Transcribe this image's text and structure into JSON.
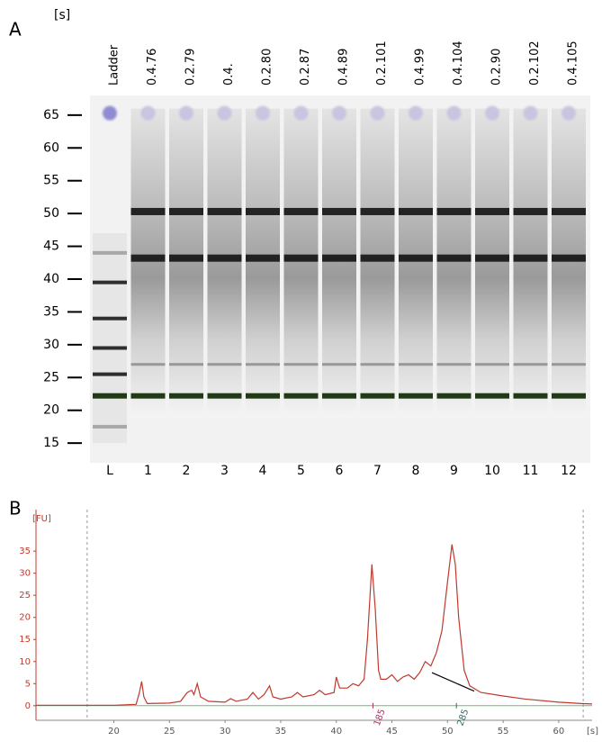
{
  "chart_data": [
    {
      "type": "gel",
      "panel": "A",
      "y_label": "[s]",
      "ylim": [
        12,
        68
      ],
      "yticks": [
        15,
        20,
        25,
        30,
        35,
        40,
        45,
        50,
        55,
        60,
        65
      ],
      "marker": 22.2,
      "marker_color": "#1f3a14",
      "band_color": "#1a1a1a",
      "lanes": [
        {
          "name": "Ladder",
          "label": "L",
          "bands": [
            44,
            39.5,
            34,
            29.5,
            25.5,
            17.5
          ]
        },
        {
          "name": "0.4.76",
          "label": "1",
          "bands": [
            50.3,
            43.2,
            27
          ]
        },
        {
          "name": "0.2.79",
          "label": "2",
          "bands": [
            50.3,
            43.2,
            27
          ]
        },
        {
          "name": "0.4.",
          "label": "3",
          "bands": [
            50.3,
            43.2,
            27
          ]
        },
        {
          "name": "0.2.80",
          "label": "4",
          "bands": [
            50.3,
            43.2,
            27
          ]
        },
        {
          "name": "0.2.87",
          "label": "5",
          "bands": [
            50.3,
            43.2,
            27
          ]
        },
        {
          "name": "0.4.89",
          "label": "6",
          "bands": [
            50.3,
            43.2,
            27
          ]
        },
        {
          "name": "0.2.101",
          "label": "7",
          "bands": [
            50.3,
            43.2,
            27
          ]
        },
        {
          "name": "0.4.99",
          "label": "8",
          "bands": [
            50.3,
            43.2,
            27
          ]
        },
        {
          "name": "0.4.104",
          "label": "9",
          "bands": [
            50.3,
            43.2,
            27
          ]
        },
        {
          "name": "0.2.90",
          "label": "10",
          "bands": [
            50.3,
            43.2,
            27
          ]
        },
        {
          "name": "0.2.102",
          "label": "11",
          "bands": [
            50.3,
            43.2,
            27
          ]
        },
        {
          "name": "0.4.105",
          "label": "12",
          "bands": [
            50.3,
            43.2,
            27
          ]
        }
      ]
    },
    {
      "type": "line",
      "panel": "B",
      "y_label": "[FU]",
      "x_label": "[s]",
      "xlim": [
        13,
        63
      ],
      "ylim": [
        -3.3,
        44.4
      ],
      "xticks": [
        20,
        25,
        30,
        35,
        40,
        45,
        50,
        55,
        60
      ],
      "yticks": [
        0,
        5,
        10,
        15,
        20,
        25,
        30,
        35
      ],
      "color": "#c0392b",
      "baseline_color": "#6abf69",
      "dashed_x": [
        17.6,
        62.2
      ],
      "annotations": [
        {
          "text": "185",
          "x": 43.3,
          "color": "#b0306a"
        },
        {
          "text": "285",
          "x": 50.8,
          "color": "#2f6b6b"
        }
      ],
      "region_line": {
        "x": [
          48.6,
          52.4
        ],
        "y": [
          7.5,
          3.3
        ]
      },
      "x": [
        13,
        17,
        20,
        22,
        22.3,
        22.5,
        22.7,
        23,
        25,
        26,
        26.6,
        27,
        27.2,
        27.5,
        27.8,
        28.5,
        30,
        30.5,
        31,
        32,
        32.5,
        33,
        33.5,
        34,
        34.3,
        35,
        36,
        36.5,
        37,
        38,
        38.5,
        39,
        39.8,
        40,
        40.3,
        41,
        41.5,
        42,
        42.5,
        42.8,
        43.2,
        43.5,
        43.8,
        44,
        44.5,
        45,
        45.5,
        46,
        46.5,
        47,
        47.5,
        48,
        48.5,
        49,
        49.5,
        50,
        50.4,
        50.7,
        51,
        51.5,
        52,
        53,
        55,
        57,
        60,
        62,
        63
      ],
      "y": [
        0.1,
        0.1,
        0.1,
        0.3,
        3,
        5.5,
        2,
        0.5,
        0.6,
        1,
        3,
        3.5,
        2.5,
        5,
        2,
        1,
        0.8,
        1.6,
        1,
        1.5,
        3,
        1.5,
        2.5,
        4.5,
        2,
        1.5,
        2,
        3,
        2,
        2.5,
        3.5,
        2.5,
        3,
        6.5,
        4,
        4,
        5,
        4.5,
        6,
        15,
        32,
        22,
        8,
        6,
        6,
        7,
        5.5,
        6.5,
        7,
        6,
        7.5,
        10,
        9,
        12,
        17,
        28,
        36.5,
        32,
        20,
        8,
        4.5,
        3,
        2.2,
        1.5,
        0.8,
        0.5,
        0.4
      ]
    }
  ]
}
